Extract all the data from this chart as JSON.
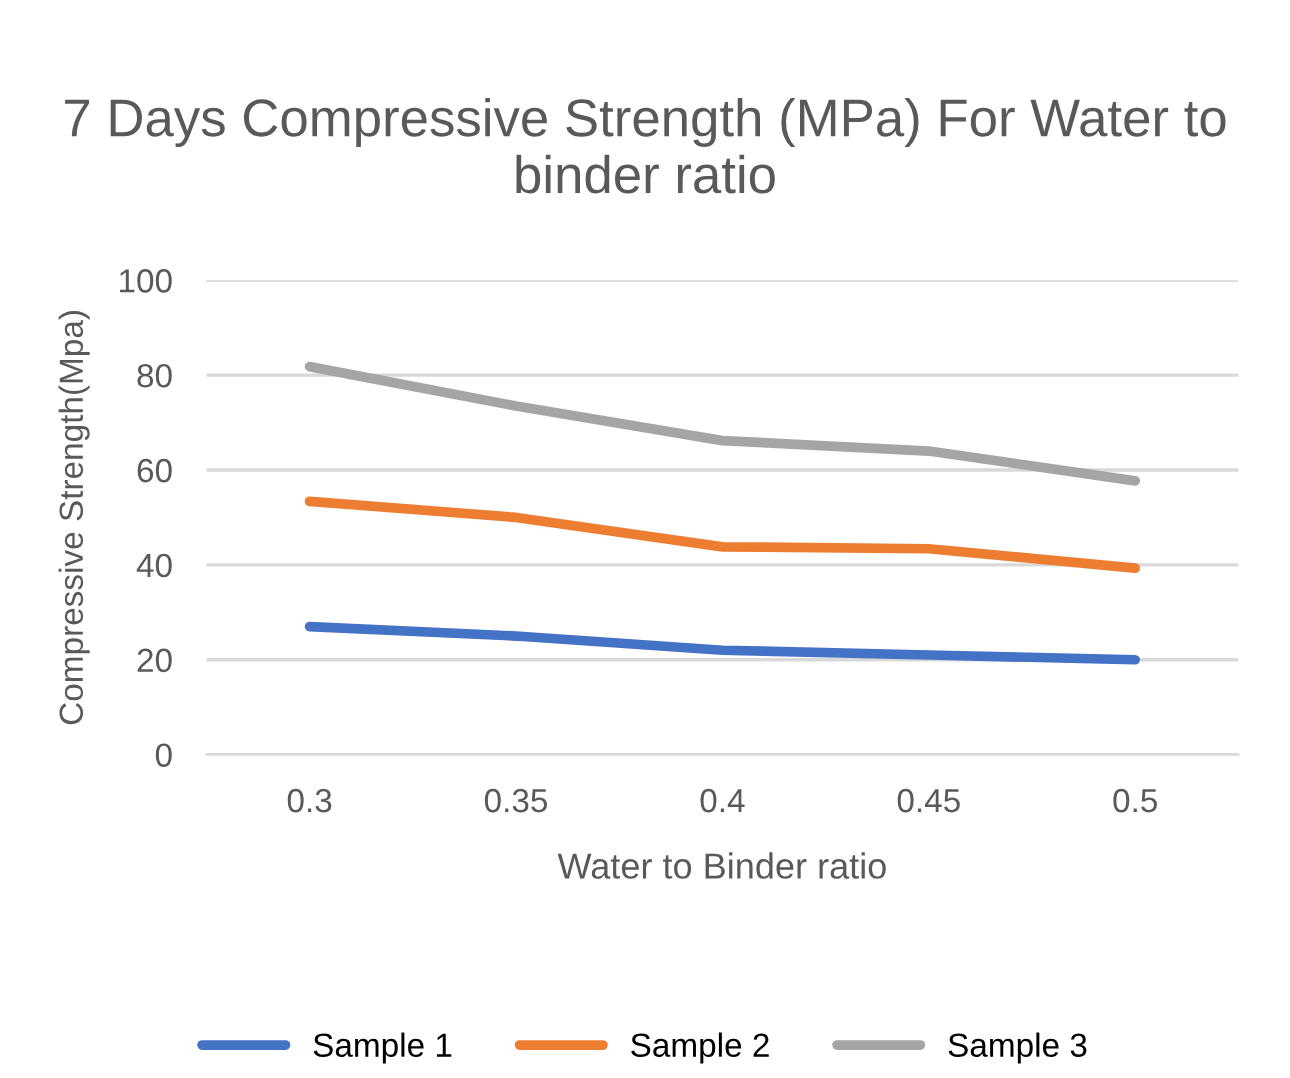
{
  "chart_data": {
    "type": "line",
    "title": "7 Days Compressive Strength (MPa) For Water to binder ratio",
    "xlabel": "Water to Binder ratio",
    "ylabel": "Compressive Strength(Mpa)",
    "categories": [
      "0.3",
      "0.35",
      "0.4",
      "0.45",
      "0.5"
    ],
    "series": [
      {
        "name": "Sample 1",
        "color": "#4472c4",
        "values": [
          27,
          25,
          22,
          21,
          20
        ]
      },
      {
        "name": "Sample 2",
        "color": "#ed7d31",
        "values": [
          53.4,
          50,
          43.8,
          43.4,
          39.3
        ]
      },
      {
        "name": "Sample 3",
        "color": "#a5a5a5",
        "values": [
          81.8,
          73.5,
          66.2,
          64,
          57.7
        ]
      }
    ],
    "ylim": [
      0,
      100
    ],
    "yticks": [
      0,
      20,
      40,
      60,
      80,
      100
    ],
    "grid": "y",
    "legend": "bottom",
    "marker": "none",
    "line_style": "solid"
  }
}
